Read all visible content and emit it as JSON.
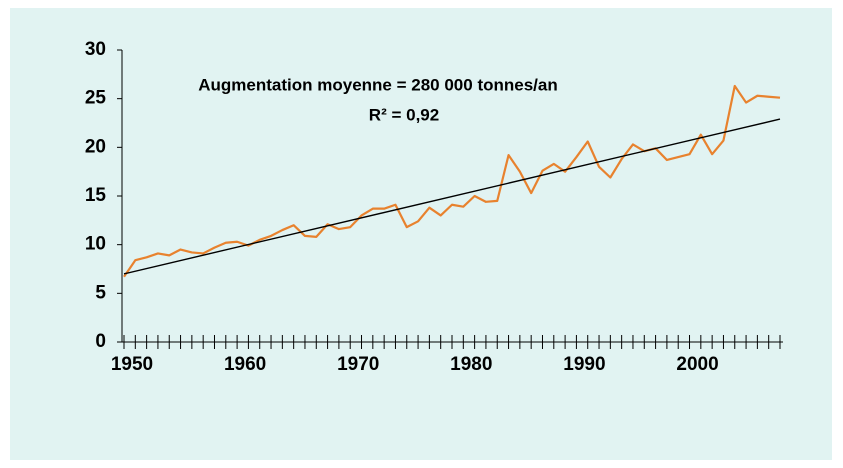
{
  "chart_data": {
    "type": "line",
    "annotations": [
      "Augmentation moyenne = 280 000 tonnes/an",
      "R² = 0,92"
    ],
    "x": [
      1950,
      1951,
      1952,
      1953,
      1954,
      1955,
      1956,
      1957,
      1958,
      1959,
      1960,
      1961,
      1962,
      1963,
      1964,
      1965,
      1966,
      1967,
      1968,
      1969,
      1970,
      1971,
      1972,
      1973,
      1974,
      1975,
      1976,
      1977,
      1978,
      1979,
      1980,
      1981,
      1982,
      1983,
      1984,
      1985,
      1986,
      1987,
      1988,
      1989,
      1990,
      1991,
      1992,
      1993,
      1994,
      1995,
      1996,
      1997,
      1998,
      1999,
      2000,
      2001,
      2002,
      2003,
      2004,
      2005,
      2006,
      2007,
      2008
    ],
    "values": [
      6.7,
      8.4,
      8.7,
      9.1,
      8.9,
      9.5,
      9.2,
      9.1,
      9.7,
      10.2,
      10.3,
      9.9,
      10.5,
      10.9,
      11.5,
      12.0,
      10.9,
      10.8,
      12.1,
      11.6,
      11.8,
      13.0,
      13.7,
      13.7,
      14.1,
      11.8,
      12.4,
      13.8,
      13.0,
      14.1,
      13.9,
      15.0,
      14.4,
      14.5,
      19.2,
      17.5,
      15.3,
      17.6,
      18.3,
      17.5,
      19.0,
      20.6,
      18.0,
      16.9,
      18.8,
      20.3,
      19.6,
      19.9,
      18.7,
      19.0,
      19.3,
      21.3,
      19.3,
      20.7,
      26.3,
      24.6,
      25.3,
      25.2,
      25.1
    ],
    "color": "#e8822e",
    "trend": {
      "x": [
        1950,
        2008
      ],
      "values": [
        7.0,
        22.9
      ],
      "color": "#000000"
    },
    "xlim": [
      1950,
      2008
    ],
    "xticks": [
      1950,
      1960,
      1970,
      1980,
      1990,
      2000
    ],
    "ylim": [
      0,
      30
    ],
    "yticks": [
      0,
      5,
      10,
      15,
      20,
      25,
      30
    ]
  }
}
